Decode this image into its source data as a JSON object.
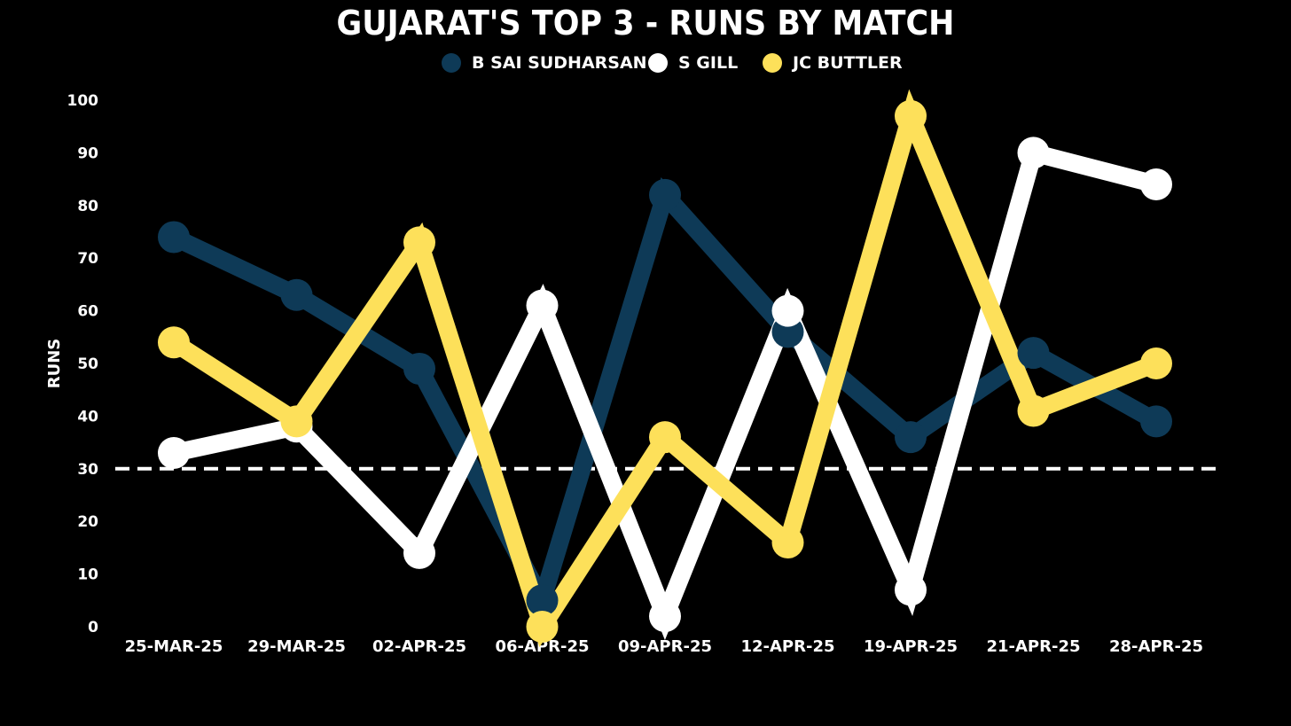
{
  "chart_data": {
    "type": "line",
    "title": "GUJARAT'S TOP 3 - RUNS BY MATCH",
    "xlabel": "",
    "ylabel": "RUNS",
    "ylim": [
      0,
      100
    ],
    "yticks": [
      "0",
      "10",
      "20",
      "30",
      "40",
      "50",
      "60",
      "70",
      "80",
      "90",
      "100"
    ],
    "categories": [
      "25-MAR-25",
      "29-MAR-25",
      "02-APR-25",
      "06-APR-25",
      "09-APR-25",
      "12-APR-25",
      "19-APR-25",
      "21-APR-25",
      "28-APR-25"
    ],
    "reference_line": {
      "value": 30,
      "style": "dashed",
      "color": "#ffffff"
    },
    "legend_position": "top-center",
    "grid": false,
    "series": [
      {
        "name": "B SAI SUDHARSAN",
        "color": "#0e3a57",
        "values": [
          74,
          63,
          49,
          5,
          82,
          56,
          36,
          52,
          39
        ]
      },
      {
        "name": "S GILL",
        "color": "#ffffff",
        "values": [
          33,
          38,
          14,
          61,
          2,
          60,
          7,
          90,
          84
        ]
      },
      {
        "name": "JC BUTTLER",
        "color": "#fde05a",
        "values": [
          54,
          39,
          73,
          0,
          36,
          16,
          97,
          41,
          50
        ]
      }
    ]
  }
}
